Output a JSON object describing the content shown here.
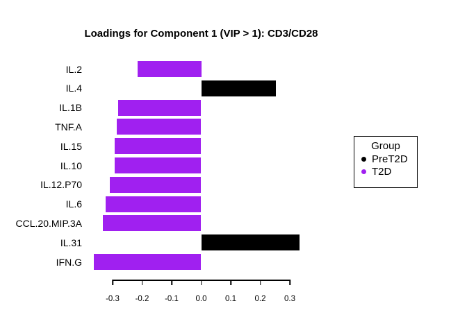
{
  "chart_data": {
    "type": "bar",
    "orientation": "horizontal",
    "title": "Loadings for Component 1 (VIP > 1): CD3/CD28",
    "categories": [
      "IL.2",
      "IL.4",
      "IL.1B",
      "TNF.A",
      "IL.15",
      "IL.10",
      "IL.12.P70",
      "IL.6",
      "CCL.20.MIP.3A",
      "IL.31",
      "IFN.G"
    ],
    "values": [
      -0.215,
      0.253,
      -0.281,
      -0.286,
      -0.293,
      -0.293,
      -0.309,
      -0.324,
      -0.333,
      0.333,
      -0.364
    ],
    "groups": [
      "T2D",
      "PreT2D",
      "T2D",
      "T2D",
      "T2D",
      "T2D",
      "T2D",
      "T2D",
      "T2D",
      "PreT2D",
      "T2D"
    ],
    "group_colors": {
      "PreT2D": "#000000",
      "T2D": "#A020F0"
    },
    "xlabel": "",
    "ylabel": "",
    "x_ticks": [
      -0.3,
      -0.2,
      -0.1,
      0,
      0.1,
      0.2,
      0.3
    ],
    "x_tick_labels": [
      "-0.3",
      "-0.2",
      "-0.1",
      "0.0",
      "0.1",
      "0.2",
      "0.3"
    ],
    "xlim": [
      -0.39,
      0.35
    ],
    "grid": false,
    "legend_position": "right"
  },
  "legend": {
    "title": "Group",
    "items": [
      {
        "label": "PreT2D",
        "color": "#000000"
      },
      {
        "label": "T2D",
        "color": "#A020F0"
      }
    ]
  }
}
